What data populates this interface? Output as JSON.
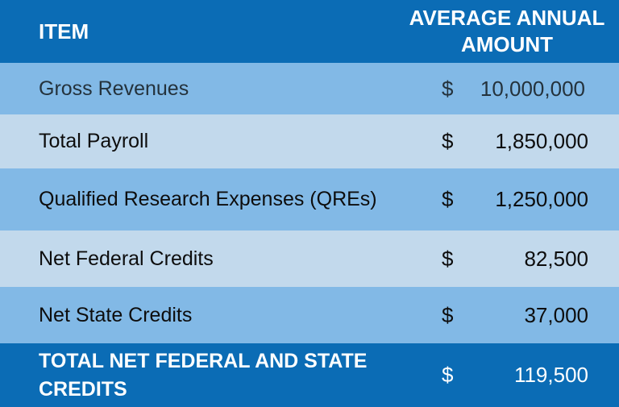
{
  "header": {
    "item_label": "ITEM",
    "amount_label": "AVERAGE ANNUAL AMOUNT"
  },
  "rows": [
    {
      "item": "Gross Revenues",
      "currency": "$",
      "amount": "10,000,000"
    },
    {
      "item": "Total Payroll",
      "currency": "$",
      "amount": "1,850,000"
    },
    {
      "item": "Qualified Research Expenses (QREs)",
      "currency": "$",
      "amount": "1,250,000"
    },
    {
      "item": "Net Federal Credits",
      "currency": "$",
      "amount": "82,500"
    },
    {
      "item": "Net State Credits",
      "currency": "$",
      "amount": "37,000"
    }
  ],
  "total": {
    "item": "TOTAL NET FEDERAL AND STATE CREDITS",
    "currency": "$",
    "amount": "119,500"
  },
  "colors": {
    "header_bg": "#0b6cb5",
    "row_dark": "#82b9e6",
    "row_light": "#c2d9ec",
    "header_text": "#ffffff"
  }
}
